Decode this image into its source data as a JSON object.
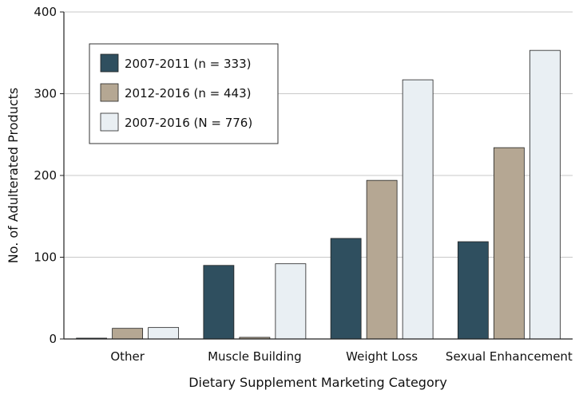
{
  "chart_data": {
    "type": "bar",
    "title": "",
    "xlabel": "Dietary Supplement Marketing Category",
    "ylabel": "No. of Adulterated Products",
    "categories": [
      "Other",
      "Muscle Building",
      "Weight Loss",
      "Sexual Enhancement"
    ],
    "series": [
      {
        "name": "2007-2011 (n = 333)",
        "values": [
          1,
          90,
          123,
          119
        ],
        "color": "#2f4f5f"
      },
      {
        "name": "2012-2016 (n = 443)",
        "values": [
          13,
          2,
          194,
          234
        ],
        "color": "#b5a793"
      },
      {
        "name": "2007-2016 (N = 776)",
        "values": [
          14,
          92,
          317,
          353
        ],
        "color": "#e9eff3"
      }
    ],
    "ylim": [
      0,
      400
    ],
    "yticks": [
      0,
      100,
      200,
      300,
      400
    ],
    "grid": true,
    "legend_position": "top-left"
  }
}
